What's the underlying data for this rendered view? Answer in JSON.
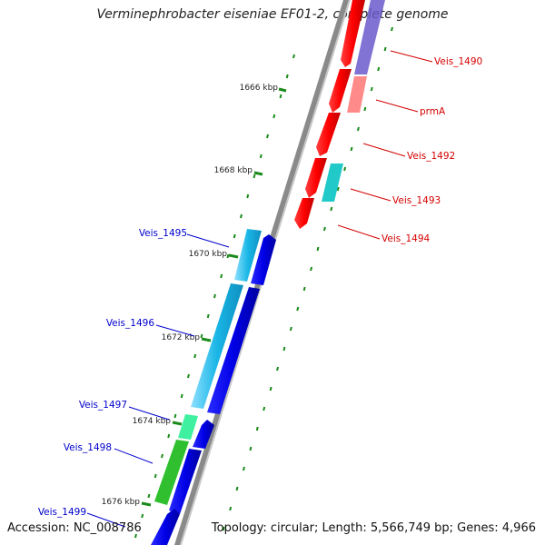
{
  "title": "Verminephrobacter eiseniae EF01-2, complete genome",
  "footer": {
    "accession": "Accession: NC_008786",
    "summary": "Topology: circular; Length: 5,566,749 bp; Genes: 4,966"
  },
  "colors": {
    "backbone": "#8a8a8a",
    "tick": "#1a8a1a",
    "label_red": "#d40000",
    "label_blue": "#0000cc",
    "gene_red": "#ff0000",
    "gene_pink": "#ff8a8a",
    "gene_purple": "#6a5acd",
    "gene_blue": "#0000e6",
    "gene_cyan": "#19b6e6",
    "gene_teal": "#22c9c9",
    "gene_green": "#2fbf2f",
    "gene_mint": "#3ef0a0"
  },
  "ticks": [
    {
      "label": "1666 kbp"
    },
    {
      "label": "1668 kbp"
    },
    {
      "label": "1670 kbp"
    },
    {
      "label": "1672 kbp"
    },
    {
      "label": "1674 kbp"
    },
    {
      "label": "1676 kbp"
    }
  ],
  "gene_labels": [
    {
      "text": "Veis_1490",
      "color": "#d40000"
    },
    {
      "text": "prmA",
      "color": "#d40000"
    },
    {
      "text": "Veis_1492",
      "color": "#d40000"
    },
    {
      "text": "Veis_1493",
      "color": "#d40000"
    },
    {
      "text": "Veis_1494",
      "color": "#d40000"
    },
    {
      "text": "Veis_1495",
      "color": "#0000cc"
    },
    {
      "text": "Veis_1496",
      "color": "#0000cc"
    },
    {
      "text": "Veis_1497",
      "color": "#0000cc"
    },
    {
      "text": "Veis_1498",
      "color": "#0000cc"
    },
    {
      "text": "Veis_1499",
      "color": "#0000cc"
    }
  ]
}
